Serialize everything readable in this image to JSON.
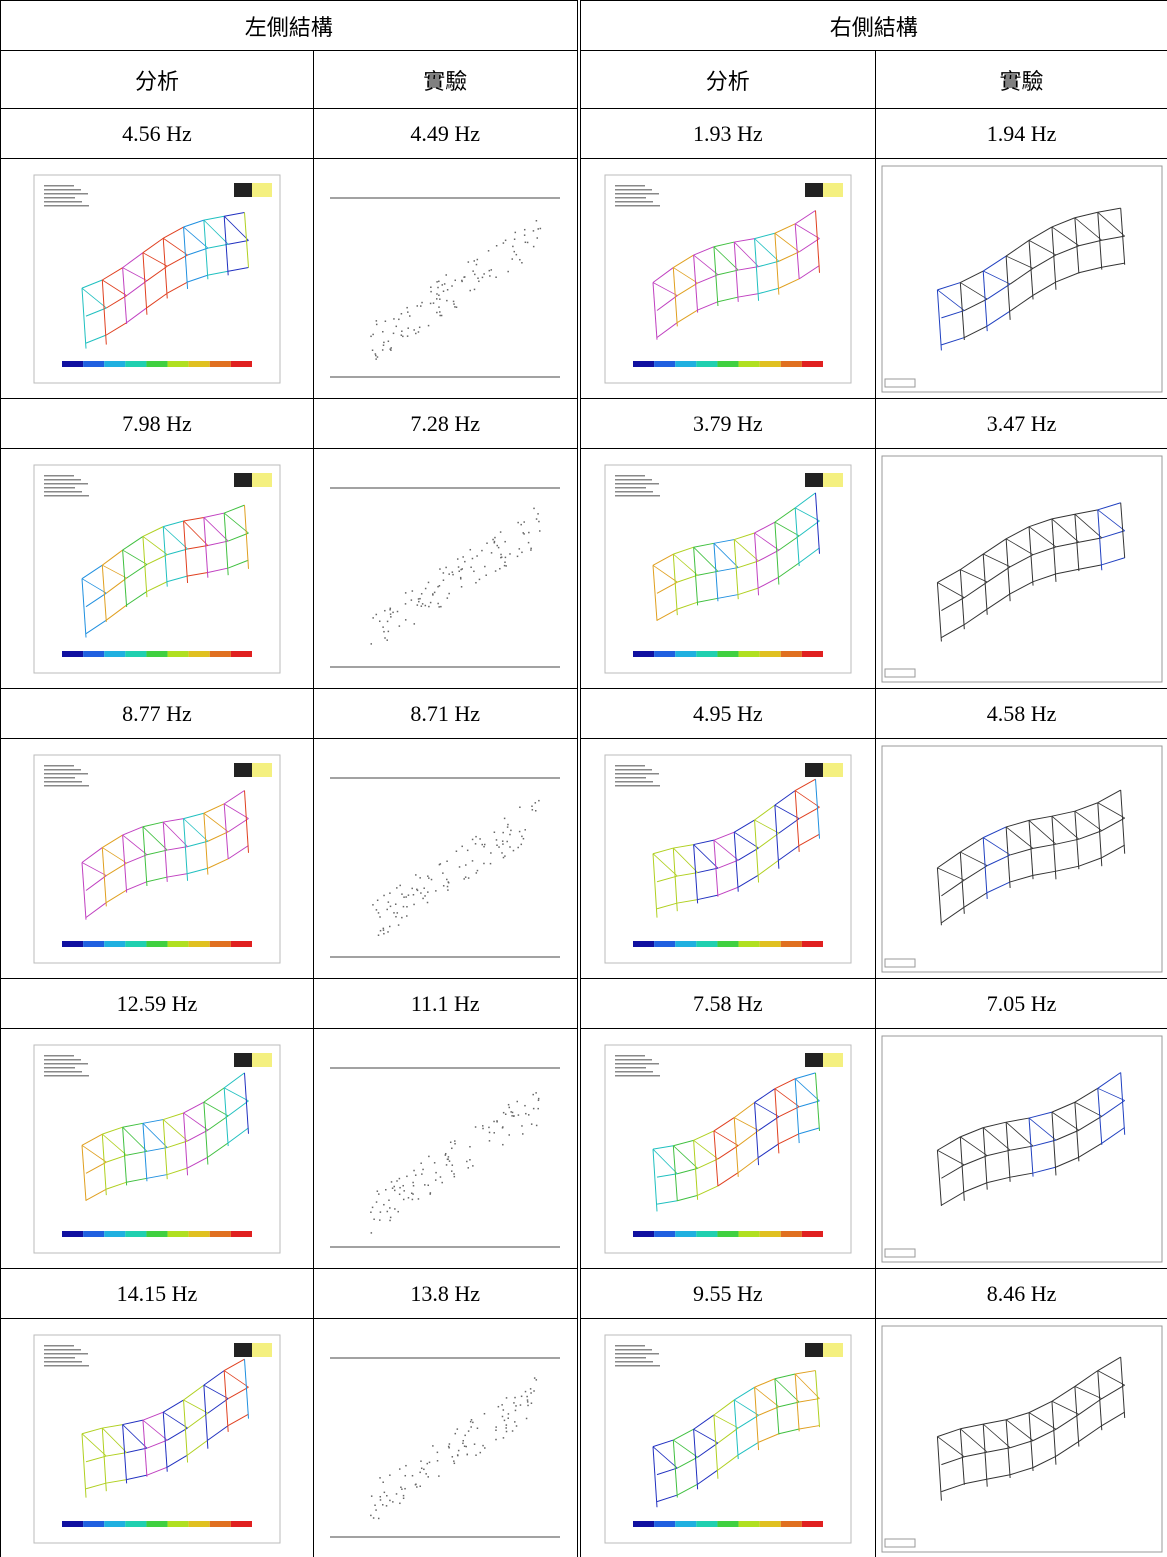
{
  "header": {
    "left": "左側結構",
    "right": "右側結構"
  },
  "subheader": [
    "分析",
    "實驗",
    "分析",
    "實驗"
  ],
  "modes": [
    [
      "4.56 Hz",
      "4.49 Hz",
      "1.93 Hz",
      "1.94 Hz"
    ],
    [
      "7.98 Hz",
      "7.28 Hz",
      "3.79 Hz",
      "3.47 Hz"
    ],
    [
      "8.77 Hz",
      "8.71 Hz",
      "4.95 Hz",
      "4.58 Hz"
    ],
    [
      "12.59 Hz",
      "11.1 Hz",
      "7.58 Hz",
      "7.05 Hz"
    ],
    [
      "14.15 Hz",
      "13.8 Hz",
      "9.55 Hz",
      "8.46 Hz"
    ]
  ]
}
